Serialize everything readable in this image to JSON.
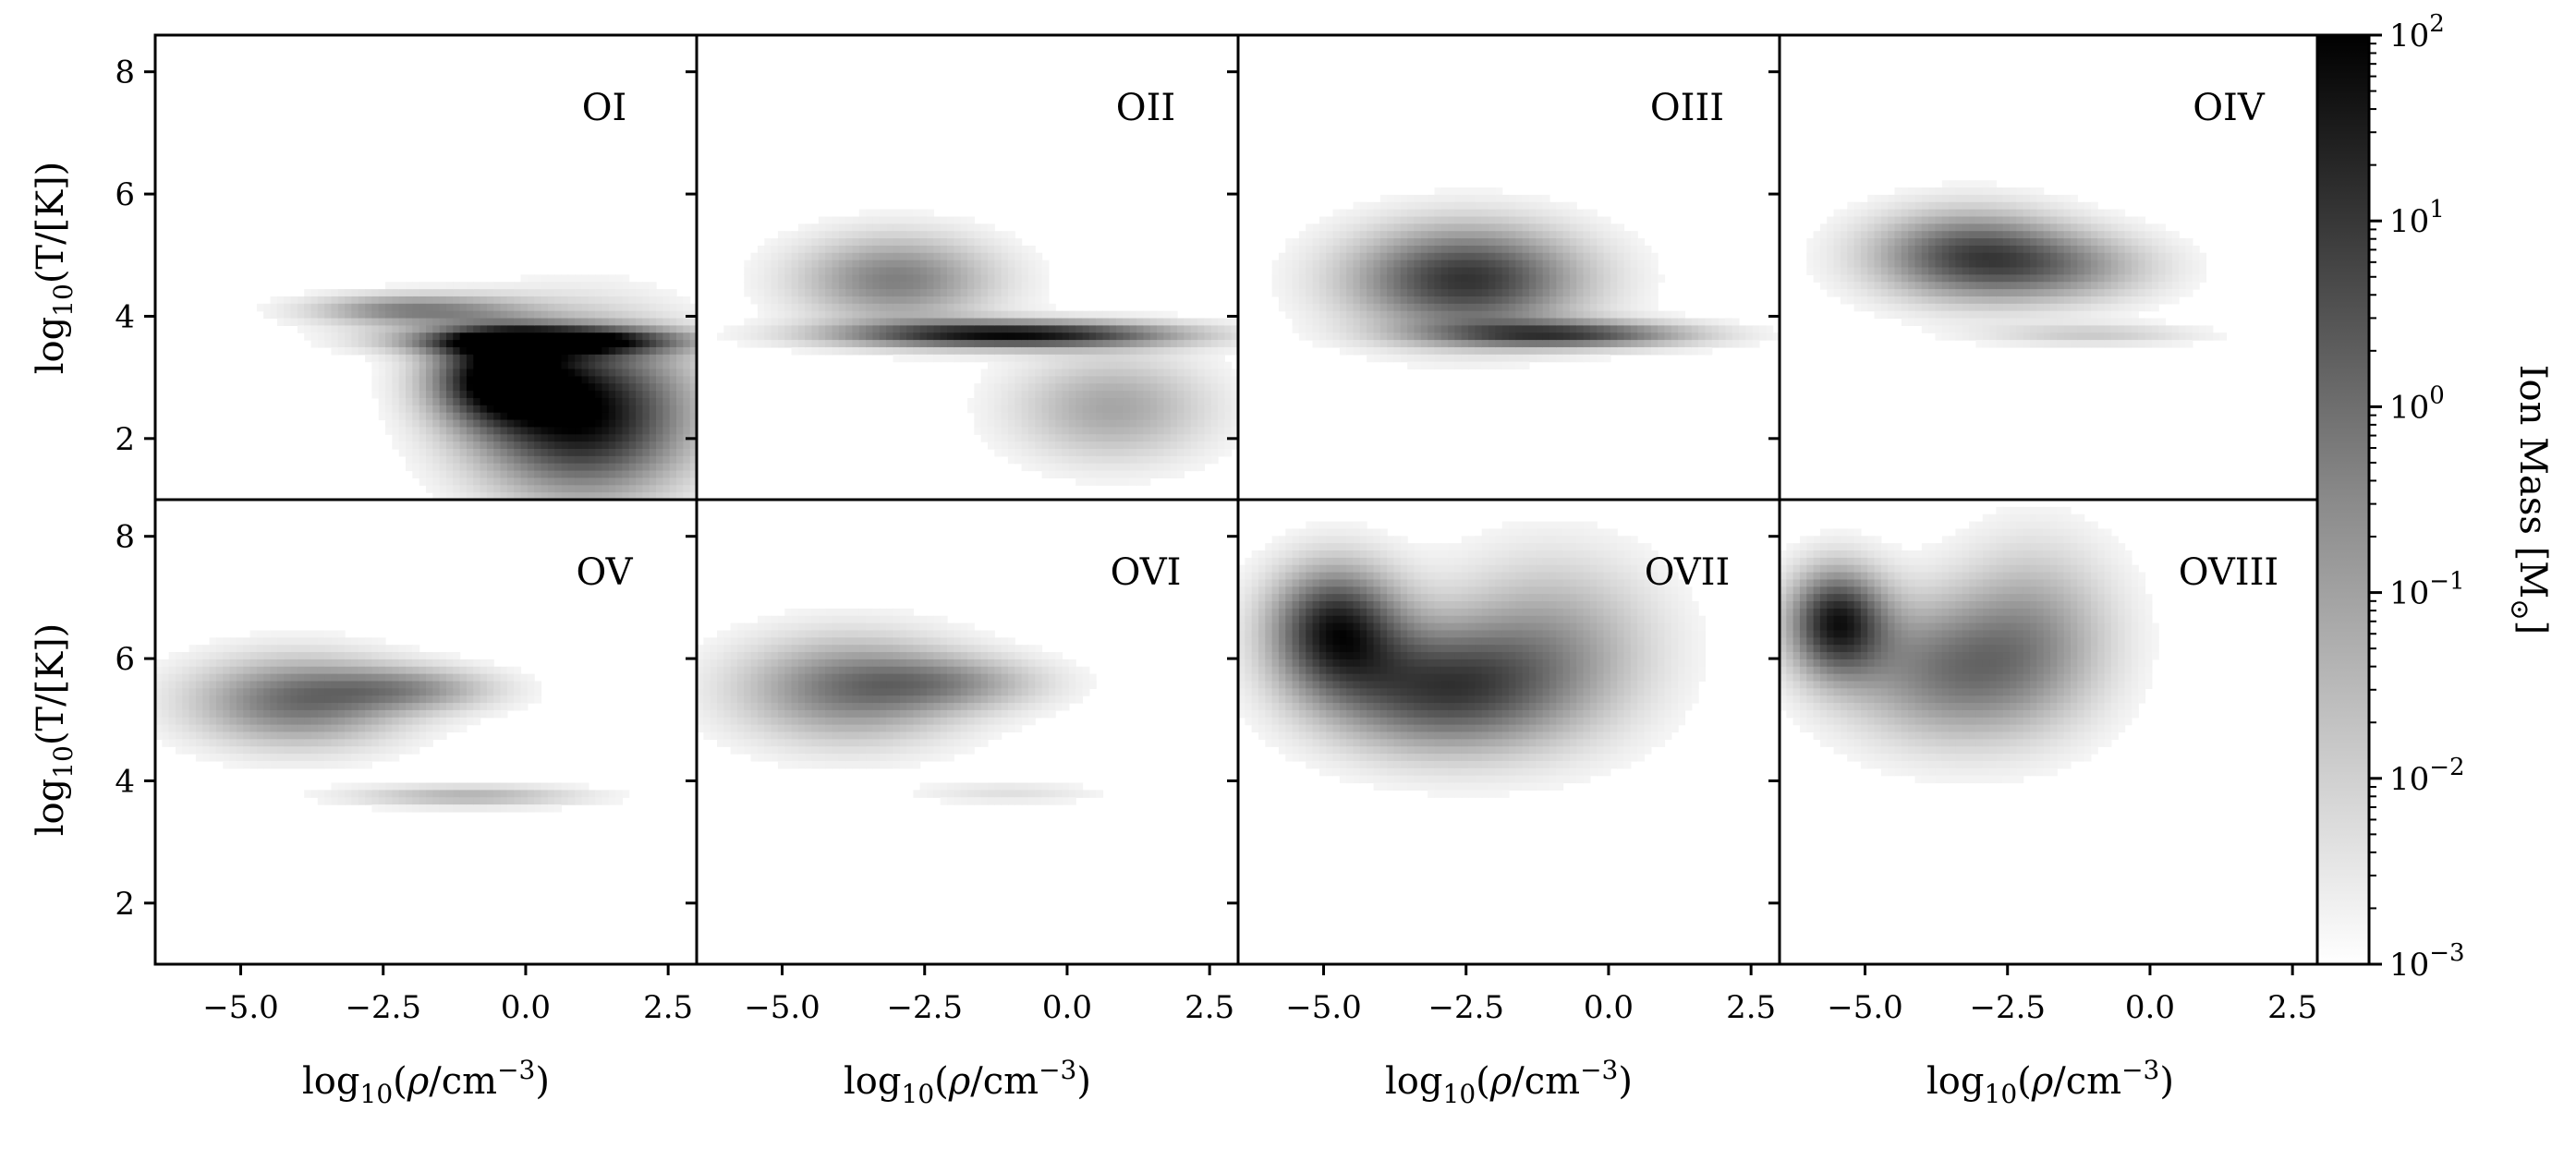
{
  "chart_data": {
    "type": "heatmap",
    "layout": "2 rows x 4 columns, shared axes",
    "xlabel": "log10(ρ/cm−3)",
    "ylabel": "log10(T/[K])",
    "xlim": [
      -6.5,
      3.0
    ],
    "ylim": [
      1.0,
      8.6
    ],
    "xticks": [
      -5.0,
      -2.5,
      0.0,
      2.5
    ],
    "xtick_labels": [
      "−5.0",
      "−2.5",
      "0.0",
      "2.5"
    ],
    "yticks": [
      2,
      4,
      6,
      8
    ],
    "ytick_labels": [
      "2",
      "4",
      "6",
      "8"
    ],
    "colorbar": {
      "label": "Ion Mass [M⊙]",
      "scale": "log",
      "range": [
        0.001,
        100
      ],
      "ticks": [
        {
          "exp": 2,
          "label": "10",
          "sup": "2"
        },
        {
          "exp": 1,
          "label": "10",
          "sup": "1"
        },
        {
          "exp": 0,
          "label": "10",
          "sup": "0"
        },
        {
          "exp": -1,
          "label": "10",
          "sup": "−1"
        },
        {
          "exp": -2,
          "label": "10",
          "sup": "−2"
        },
        {
          "exp": -3,
          "label": "10",
          "sup": "−3"
        }
      ],
      "colormap": "gray_r"
    },
    "panels": [
      {
        "label": "OI",
        "blobs": [
          {
            "cx": -2.0,
            "cy": 4.1,
            "sx": 1.2,
            "sy": 0.18,
            "amp": 0.5
          },
          {
            "cx": 0.3,
            "cy": 3.6,
            "sx": 1.6,
            "sy": 0.15,
            "amp": 1.0
          },
          {
            "cx": 1.0,
            "cy": 2.4,
            "sx": 1.3,
            "sy": 0.9,
            "amp": 1.0
          },
          {
            "cx": -0.5,
            "cy": 3.0,
            "sx": 0.8,
            "sy": 0.5,
            "amp": 0.9
          }
        ]
      },
      {
        "label": "OII",
        "blobs": [
          {
            "cx": -3.0,
            "cy": 4.6,
            "sx": 1.2,
            "sy": 0.5,
            "amp": 0.5
          },
          {
            "cx": -1.0,
            "cy": 3.7,
            "sx": 2.0,
            "sy": 0.15,
            "amp": 0.95
          },
          {
            "cx": 0.8,
            "cy": 2.5,
            "sx": 1.2,
            "sy": 0.6,
            "amp": 0.35
          }
        ]
      },
      {
        "label": "OIII",
        "blobs": [
          {
            "cx": -2.5,
            "cy": 4.6,
            "sx": 1.4,
            "sy": 0.6,
            "amp": 0.8
          },
          {
            "cx": -0.8,
            "cy": 3.7,
            "sx": 1.6,
            "sy": 0.15,
            "amp": 0.7
          }
        ]
      },
      {
        "label": "OIV",
        "blobs": [
          {
            "cx": -3.2,
            "cy": 5.0,
            "sx": 1.2,
            "sy": 0.5,
            "amp": 0.65
          },
          {
            "cx": -1.5,
            "cy": 4.8,
            "sx": 1.2,
            "sy": 0.4,
            "amp": 0.35
          },
          {
            "cx": -1.0,
            "cy": 3.7,
            "sx": 1.3,
            "sy": 0.12,
            "amp": 0.2
          }
        ]
      },
      {
        "label": "OV",
        "blobs": [
          {
            "cx": -4.0,
            "cy": 5.3,
            "sx": 1.3,
            "sy": 0.5,
            "amp": 0.55
          },
          {
            "cx": -2.0,
            "cy": 5.5,
            "sx": 1.1,
            "sy": 0.25,
            "amp": 0.35
          },
          {
            "cx": -1.0,
            "cy": 3.75,
            "sx": 1.4,
            "sy": 0.12,
            "amp": 0.3
          }
        ]
      },
      {
        "label": "OVI",
        "blobs": [
          {
            "cx": -3.8,
            "cy": 5.5,
            "sx": 1.4,
            "sy": 0.6,
            "amp": 0.5
          },
          {
            "cx": -2.0,
            "cy": 5.6,
            "sx": 1.2,
            "sy": 0.3,
            "amp": 0.3
          },
          {
            "cx": -1.0,
            "cy": 3.8,
            "sx": 1.1,
            "sy": 0.12,
            "amp": 0.12
          }
        ]
      },
      {
        "label": "OVII",
        "blobs": [
          {
            "cx": -4.8,
            "cy": 6.5,
            "sx": 0.8,
            "sy": 0.7,
            "amp": 0.85
          },
          {
            "cx": -3.0,
            "cy": 5.5,
            "sx": 1.4,
            "sy": 0.7,
            "amp": 0.7
          },
          {
            "cx": -1.0,
            "cy": 6.2,
            "sx": 1.3,
            "sy": 1.0,
            "amp": 0.35
          }
        ]
      },
      {
        "label": "OVIII",
        "blobs": [
          {
            "cx": -5.5,
            "cy": 6.6,
            "sx": 0.6,
            "sy": 0.6,
            "amp": 0.85
          },
          {
            "cx": -3.5,
            "cy": 5.8,
            "sx": 1.3,
            "sy": 0.8,
            "amp": 0.5
          },
          {
            "cx": -2.0,
            "cy": 6.5,
            "sx": 1.0,
            "sy": 1.0,
            "amp": 0.3
          }
        ]
      }
    ]
  }
}
